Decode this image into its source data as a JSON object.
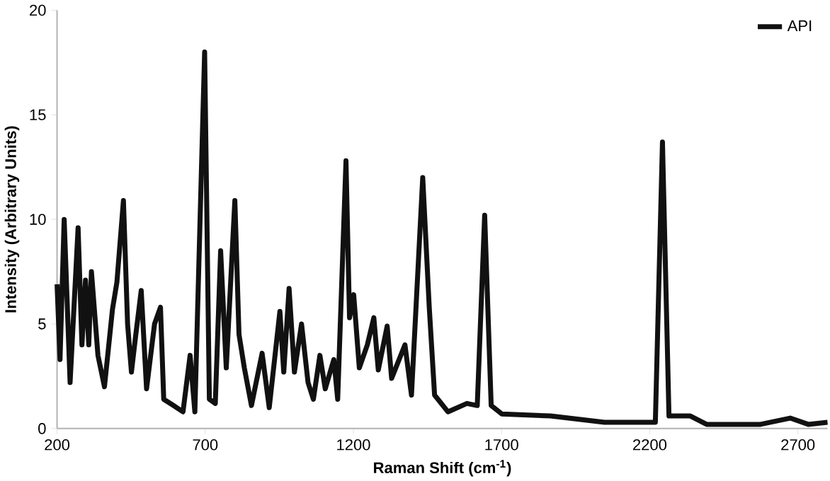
{
  "chart_data": {
    "type": "line",
    "xlabel": "Raman Shift (cm$^{-1}$)",
    "ylabel": "Intensity (Arbitrary Units)",
    "xlim": [
      200,
      2800
    ],
    "xticks": [
      200,
      700,
      1200,
      1700,
      2200,
      2700
    ],
    "ylim": [
      0,
      20
    ],
    "yticks": [
      0,
      5,
      10,
      15,
      20
    ],
    "grid": false,
    "legend": "top right",
    "marker": "none",
    "line_style": "solid",
    "series": [
      {
        "name": "API",
        "color": "#111111",
        "x": [
          200,
          210,
          224,
          244,
          271,
          284,
          296,
          307,
          316,
          338,
          360,
          387,
          402,
          424,
          438,
          451,
          465,
          484,
          502,
          529,
          549,
          560,
          593,
          625,
          649,
          665,
          698,
          714,
          734,
          752,
          771,
          800,
          814,
          832,
          856,
          892,
          916,
          952,
          965,
          983,
          1001,
          1025,
          1047,
          1065,
          1087,
          1105,
          1134,
          1147,
          1175,
          1187,
          1201,
          1220,
          1247,
          1269,
          1284,
          1314,
          1329,
          1374,
          1396,
          1434,
          1456,
          1474,
          1519,
          1583,
          1618,
          1643,
          1665,
          1701,
          1865,
          2047,
          2192,
          2219,
          2243,
          2265,
          2337,
          2392,
          2483,
          2574,
          2674,
          2735,
          2800
        ],
        "values": [
          6.9,
          3.3,
          10.0,
          2.2,
          9.6,
          4.0,
          7.1,
          4.0,
          7.5,
          3.5,
          2.0,
          5.7,
          7.0,
          10.9,
          5.0,
          2.7,
          4.4,
          6.6,
          1.9,
          5.0,
          5.8,
          1.4,
          1.1,
          0.8,
          3.5,
          0.8,
          18.0,
          1.4,
          1.2,
          8.5,
          2.9,
          10.9,
          4.5,
          2.9,
          1.1,
          3.6,
          1.0,
          5.6,
          2.7,
          6.7,
          2.7,
          5.0,
          2.2,
          1.4,
          3.5,
          1.9,
          3.3,
          1.4,
          12.8,
          5.3,
          6.4,
          2.9,
          4.0,
          5.3,
          2.8,
          4.9,
          2.4,
          4.0,
          1.6,
          12.0,
          5.8,
          1.6,
          0.8,
          1.2,
          1.1,
          10.2,
          1.1,
          0.7,
          0.6,
          0.3,
          0.3,
          0.3,
          13.7,
          0.6,
          0.6,
          0.2,
          0.2,
          0.2,
          0.5,
          0.2,
          0.3
        ]
      }
    ]
  }
}
